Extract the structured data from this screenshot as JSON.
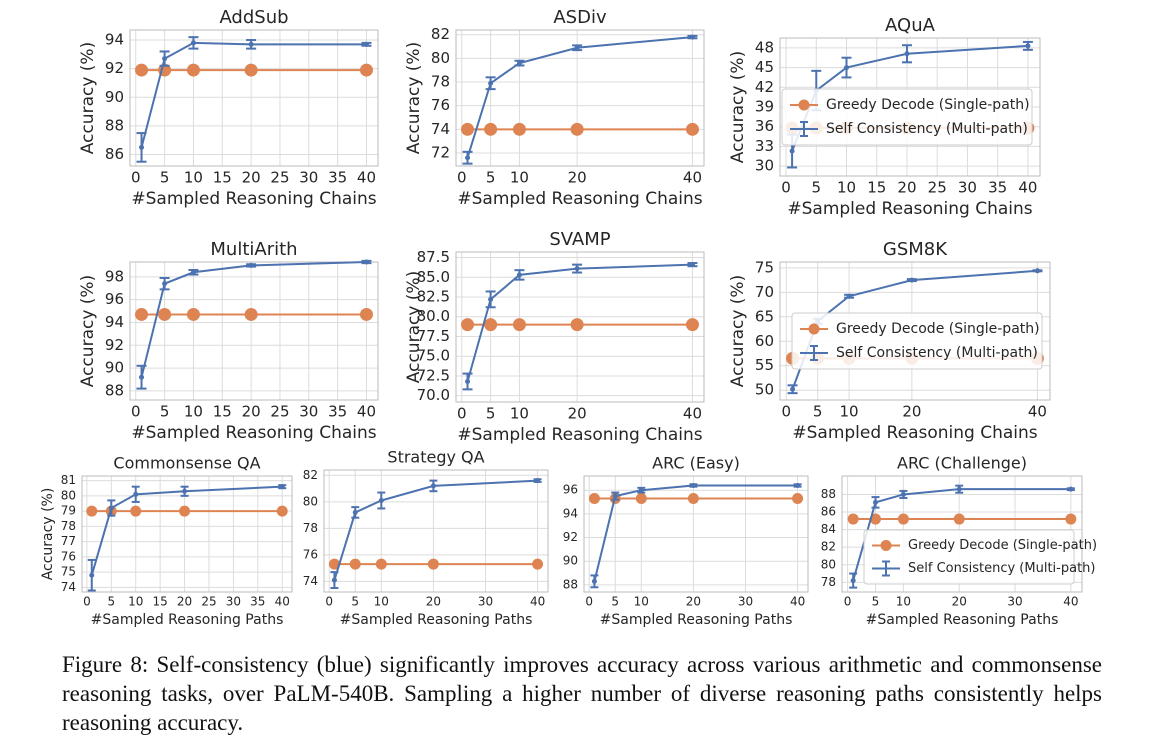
{
  "chart_data": [
    {
      "type": "line",
      "title": "AddSub",
      "xlabel": "#Sampled Reasoning Chains",
      "ylabel": "Accuracy (%)",
      "x": [
        1,
        5,
        10,
        20,
        40
      ],
      "xlim": [
        -1,
        42
      ],
      "xticks": [
        0,
        5,
        10,
        15,
        20,
        25,
        30,
        35,
        40
      ],
      "ylim": [
        85.2,
        94.7
      ],
      "yticks": [
        86,
        88,
        90,
        92,
        94
      ],
      "grid": true,
      "series": [
        {
          "color": "#dd8452",
          "values": [
            91.9,
            91.9,
            91.9,
            91.9,
            91.9
          ]
        },
        {
          "color": "#4c72b0",
          "values": [
            86.5,
            92.7,
            93.8,
            93.7,
            93.7
          ],
          "errors": [
            1.0,
            0.5,
            0.4,
            0.3,
            0.1
          ]
        }
      ]
    },
    {
      "type": "line",
      "title": "ASDiv",
      "xlabel": "#Sampled Reasoning Chains",
      "ylabel": "Accuracy (%)",
      "x": [
        1,
        5,
        10,
        20,
        40
      ],
      "xlim": [
        -1,
        42
      ],
      "xticks": [
        0,
        5,
        10,
        20,
        40
      ],
      "ylim": [
        70.9,
        82.4
      ],
      "yticks": [
        72,
        74,
        76,
        78,
        80,
        82
      ],
      "grid": true,
      "series": [
        {
          "color": "#dd8452",
          "values": [
            74.0,
            74.0,
            74.0,
            74.0,
            74.0
          ]
        },
        {
          "color": "#4c72b0",
          "values": [
            71.6,
            77.9,
            79.6,
            80.9,
            81.8
          ],
          "errors": [
            0.5,
            0.5,
            0.2,
            0.2,
            0.1
          ]
        }
      ]
    },
    {
      "type": "line",
      "title": "AQuA",
      "xlabel": "#Sampled Reasoning Chains",
      "ylabel": "Accuracy (%)",
      "x": [
        1,
        5,
        10,
        20,
        40
      ],
      "xlim": [
        -1,
        42
      ],
      "xticks": [
        0,
        5,
        10,
        15,
        20,
        25,
        30,
        35,
        40
      ],
      "ylim": [
        28.5,
        49.5
      ],
      "yticks": [
        30,
        33,
        36,
        39,
        42,
        45,
        48
      ],
      "grid": true,
      "legend": "center right",
      "series": [
        {
          "name": "Greedy Decode (Single-path)",
          "color": "#dd8452",
          "values": [
            35.8,
            35.8,
            35.8,
            35.8,
            35.8
          ]
        },
        {
          "name": "Self Consistency (Multi-path)",
          "color": "#4c72b0",
          "values": [
            32.3,
            41.5,
            45.0,
            47.1,
            48.3
          ],
          "errors": [
            2.5,
            3.0,
            1.5,
            1.3,
            0.6
          ]
        }
      ]
    },
    {
      "type": "line",
      "title": "MultiArith",
      "xlabel": "#Sampled Reasoning Chains",
      "ylabel": "Accuracy (%)",
      "x": [
        1,
        5,
        10,
        20,
        40
      ],
      "xlim": [
        -1,
        42
      ],
      "xticks": [
        0,
        5,
        10,
        15,
        20,
        25,
        30,
        35,
        40
      ],
      "ylim": [
        87.2,
        99.3
      ],
      "yticks": [
        88,
        90,
        92,
        94,
        96,
        98
      ],
      "grid": true,
      "series": [
        {
          "color": "#dd8452",
          "values": [
            94.7,
            94.7,
            94.7,
            94.7,
            94.7
          ]
        },
        {
          "color": "#4c72b0",
          "values": [
            89.2,
            97.4,
            98.4,
            99.0,
            99.3
          ],
          "errors": [
            1.0,
            0.5,
            0.2,
            0.1,
            0.1
          ]
        }
      ]
    },
    {
      "type": "line",
      "title": "SVAMP",
      "xlabel": "#Sampled Reasoning Chains",
      "ylabel": "Accuracy (%)",
      "x": [
        1,
        5,
        10,
        20,
        40
      ],
      "xlim": [
        -1,
        42
      ],
      "xticks": [
        0,
        5,
        10,
        20,
        40
      ],
      "ylim": [
        69.2,
        88.2
      ],
      "yticks": [
        {
          "value": 70,
          "label": "70.0"
        },
        72.5,
        {
          "value": 75,
          "label": "75.0"
        },
        77.5,
        {
          "value": 80,
          "label": "80.0"
        },
        82.5,
        {
          "value": 85,
          "label": "85.0"
        },
        87.5
      ],
      "grid": true,
      "series": [
        {
          "color": "#dd8452",
          "values": [
            79.0,
            79.0,
            79.0,
            79.0,
            79.0
          ]
        },
        {
          "color": "#4c72b0",
          "values": [
            71.8,
            82.2,
            85.3,
            86.1,
            86.6
          ],
          "errors": [
            1.0,
            1.0,
            0.6,
            0.5,
            0.2
          ]
        }
      ]
    },
    {
      "type": "line",
      "title": "GSM8K",
      "xlabel": "#Sampled Reasoning Chains",
      "ylabel": "Accuracy (%)",
      "x": [
        1,
        5,
        10,
        20,
        40
      ],
      "xlim": [
        -1,
        42
      ],
      "xticks": [
        0,
        5,
        10,
        20,
        40
      ],
      "ylim": [
        48,
        76.2
      ],
      "yticks": [
        50,
        55,
        60,
        65,
        70,
        75
      ],
      "grid": true,
      "legend": "center right",
      "series": [
        {
          "name": "Greedy Decode (Single-path)",
          "color": "#dd8452",
          "values": [
            56.5,
            56.5,
            56.5,
            56.5,
            56.5
          ]
        },
        {
          "name": "Self Consistency (Multi-path)",
          "color": "#4c72b0",
          "values": [
            50.2,
            64.1,
            69.2,
            72.5,
            74.4
          ],
          "errors": [
            0.8,
            0.5,
            0.3,
            0.2,
            0.1
          ]
        }
      ]
    },
    {
      "type": "line",
      "title": "Commonsense QA",
      "xlabel": "#Sampled Reasoning Paths",
      "ylabel": "Accuracy (%)",
      "x": [
        1,
        5,
        10,
        20,
        40
      ],
      "xlim": [
        -1,
        42
      ],
      "xticks": [
        0,
        5,
        10,
        15,
        20,
        25,
        30,
        35,
        40
      ],
      "ylim": [
        73.7,
        81.3
      ],
      "yticks": [
        74,
        75,
        76,
        77,
        78,
        79,
        80,
        81
      ],
      "grid": true,
      "series": [
        {
          "color": "#dd8452",
          "values": [
            79.0,
            79.0,
            79.0,
            79.0,
            79.0
          ]
        },
        {
          "color": "#4c72b0",
          "values": [
            74.8,
            79.2,
            80.1,
            80.3,
            80.6
          ],
          "errors": [
            1.0,
            0.5,
            0.5,
            0.3,
            0.1
          ]
        }
      ]
    },
    {
      "type": "line",
      "title": "Strategy QA",
      "xlabel": "#Sampled Reasoning Paths",
      "x": [
        1,
        5,
        10,
        20,
        40
      ],
      "xlim": [
        -1,
        42
      ],
      "xticks": [
        0,
        5,
        10,
        20,
        30,
        40
      ],
      "ylim": [
        73.2,
        82.4
      ],
      "yticks": [
        74,
        76,
        78,
        80,
        82
      ],
      "grid": true,
      "series": [
        {
          "color": "#dd8452",
          "values": [
            75.3,
            75.3,
            75.3,
            75.3,
            75.3
          ]
        },
        {
          "color": "#4c72b0",
          "values": [
            74.1,
            79.2,
            80.1,
            81.2,
            81.6
          ],
          "errors": [
            0.6,
            0.4,
            0.6,
            0.4,
            0.1
          ]
        }
      ]
    },
    {
      "type": "line",
      "title": "ARC (Easy)",
      "xlabel": "#Sampled Reasoning Paths",
      "x": [
        1,
        5,
        10,
        20,
        40
      ],
      "xlim": [
        -1,
        42
      ],
      "xticks": [
        0,
        5,
        10,
        20,
        30,
        40
      ],
      "ylim": [
        87.4,
        97.2
      ],
      "yticks": [
        88,
        90,
        92,
        94,
        96
      ],
      "grid": true,
      "series": [
        {
          "color": "#dd8452",
          "values": [
            95.3,
            95.3,
            95.3,
            95.3,
            95.3
          ]
        },
        {
          "color": "#4c72b0",
          "values": [
            88.3,
            95.5,
            96.0,
            96.4,
            96.4
          ],
          "errors": [
            0.5,
            0.3,
            0.2,
            0.1,
            0.1
          ]
        }
      ]
    },
    {
      "type": "line",
      "title": "ARC (Challenge)",
      "xlabel": "#Sampled Reasoning Paths",
      "x": [
        1,
        5,
        10,
        20,
        40
      ],
      "xlim": [
        -1,
        42
      ],
      "xticks": [
        0,
        5,
        10,
        20,
        30,
        40
      ],
      "ylim": [
        76.9,
        90.1
      ],
      "yticks": [
        78,
        80,
        82,
        84,
        86,
        88
      ],
      "grid": true,
      "legend": "lower right",
      "series": [
        {
          "name": "Greedy Decode (Single-path)",
          "color": "#dd8452",
          "values": [
            85.2,
            85.2,
            85.2,
            85.2,
            85.2
          ]
        },
        {
          "name": "Self Consistency (Multi-path)",
          "color": "#4c72b0",
          "values": [
            78.2,
            87.1,
            88.0,
            88.6,
            88.6
          ],
          "errors": [
            0.8,
            0.6,
            0.4,
            0.4,
            0.1
          ]
        }
      ]
    }
  ],
  "caption": "Figure 8: Self-consistency (blue) significantly improves accuracy across various arithmetic and commonsense reasoning tasks, over PaLM-540B. Sampling a higher number of diverse reasoning paths consistently helps reasoning accuracy."
}
